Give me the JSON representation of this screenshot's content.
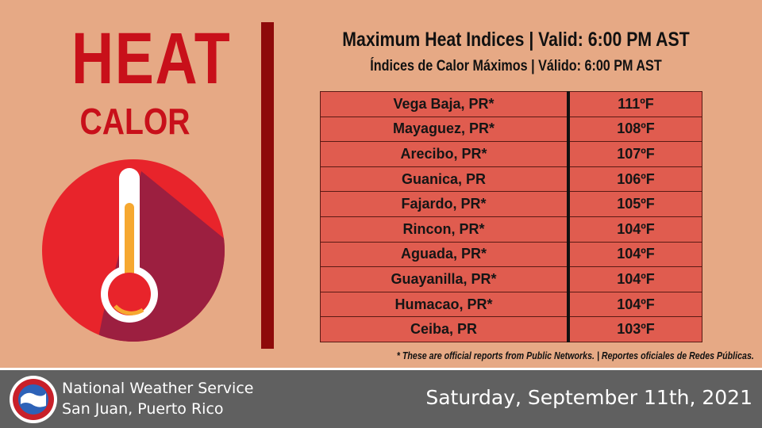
{
  "header": {
    "heat": "HEAT",
    "calor": "CALOR"
  },
  "table": {
    "title": "Maximum Heat Indices | Valid: 6:00 PM AST",
    "subtitle": "Índices de Calor Máximos | Válido: 6:00 PM AST",
    "rows": [
      [
        "Vega Baja, PR*",
        "111ºF"
      ],
      [
        "Mayaguez, PR*",
        "108ºF"
      ],
      [
        "Arecibo, PR*",
        "107ºF"
      ],
      [
        "Guanica, PR",
        "106ºF"
      ],
      [
        "Fajardo, PR*",
        "105ºF"
      ],
      [
        "Rincon, PR*",
        "104ºF"
      ],
      [
        "Aguada, PR*",
        "104ºF"
      ],
      [
        "Guayanilla, PR*",
        "104ºF"
      ],
      [
        "Humacao, PR*",
        "104ºF"
      ],
      [
        "Ceiba, PR",
        "103ºF"
      ]
    ],
    "footnote": "* These are official reports from Public Networks. | Reportes oficiales de Redes Públicas."
  },
  "footer": {
    "org": "National Weather Service",
    "office": "San Juan, Puerto Rico",
    "date": "Saturday, September 11th, 2021"
  }
}
